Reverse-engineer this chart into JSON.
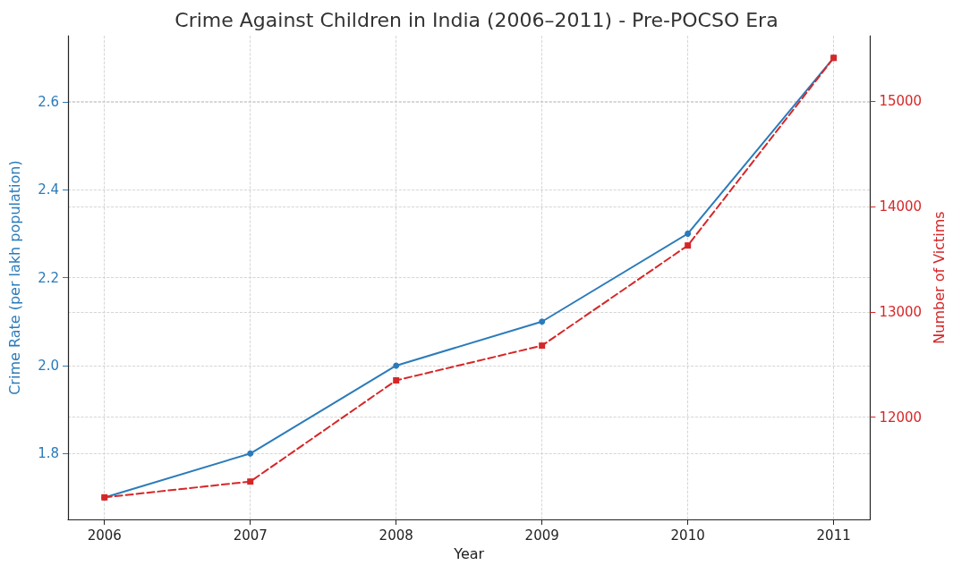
{
  "chart_data": {
    "type": "line",
    "title": "Crime Against Children in India (2006–2011) - Pre-POCSO Era",
    "xlabel": "Year",
    "ylabel": "Crime Rate (per lakh population)",
    "y2label": "Number of Victims",
    "x": [
      2006,
      2007,
      2008,
      2009,
      2010,
      2011
    ],
    "series": [
      {
        "color": "#2b7bba",
        "values": [
          1.7,
          1.8,
          2.0,
          2.1,
          2.3,
          2.7
        ],
        "marker": "circle",
        "line_style": "solid"
      },
      {
        "color": "#d62728",
        "values": [
          11240,
          11390,
          12350,
          12680,
          13630,
          15410
        ],
        "axis": "y2",
        "marker": "square",
        "line_style": "dashed"
      }
    ],
    "xlim": [
      2005.75,
      2011.25
    ],
    "xticks": [
      2006,
      2007,
      2008,
      2009,
      2010,
      2011
    ],
    "ylim": [
      1.65,
      2.75
    ],
    "yticks": [
      1.8,
      {
        "value": 2.0,
        "label": "2.0"
      },
      2.2,
      2.4,
      2.6
    ],
    "y2lim": [
      11030,
      15620
    ],
    "y2ticks": [
      12000,
      13000,
      14000,
      15000
    ],
    "grid": true
  }
}
